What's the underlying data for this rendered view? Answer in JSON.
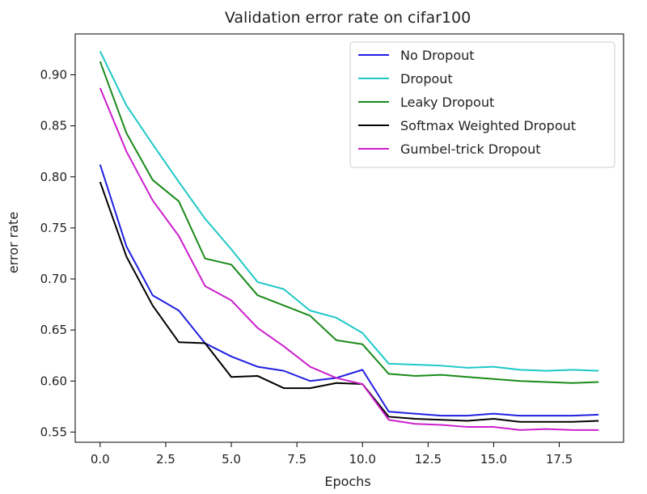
{
  "chart_data": {
    "type": "line",
    "title": "Validation error rate on cifar100",
    "xlabel": "Epochs",
    "ylabel": "error rate",
    "xlim": [
      -0.95,
      19.95
    ],
    "ylim": [
      0.54,
      0.94
    ],
    "xticks": [
      0.0,
      2.5,
      5.0,
      7.5,
      10.0,
      12.5,
      15.0,
      17.5
    ],
    "xtick_labels": [
      "0.0",
      "2.5",
      "5.0",
      "7.5",
      "10.0",
      "12.5",
      "15.0",
      "17.5"
    ],
    "yticks": [
      0.55,
      0.6,
      0.65,
      0.7,
      0.75,
      0.8,
      0.85,
      0.9
    ],
    "ytick_labels": [
      "0.55",
      "0.60",
      "0.65",
      "0.70",
      "0.75",
      "0.80",
      "0.85",
      "0.90"
    ],
    "grid": false,
    "legend_position": "top-right",
    "x": [
      0,
      1,
      2,
      3,
      4,
      5,
      6,
      7,
      8,
      9,
      10,
      11,
      12,
      13,
      14,
      15,
      16,
      17,
      18,
      19
    ],
    "series": [
      {
        "name": "No Dropout",
        "color": "#1f1fe0",
        "values": [
          0.812,
          0.732,
          0.684,
          0.669,
          0.637,
          0.624,
          0.614,
          0.61,
          0.6,
          0.603,
          0.611,
          0.57,
          0.568,
          0.566,
          0.566,
          0.568,
          0.566,
          0.566,
          0.566,
          0.567
        ]
      },
      {
        "name": "Dropout",
        "color": "#1fc8c8",
        "values": [
          0.923,
          0.87,
          0.832,
          0.795,
          0.759,
          0.729,
          0.697,
          0.69,
          0.669,
          0.662,
          0.647,
          0.617,
          0.616,
          0.615,
          0.613,
          0.614,
          0.611,
          0.61,
          0.611,
          0.61
        ]
      },
      {
        "name": "Leaky Dropout",
        "color": "#1a8a1a",
        "values": [
          0.913,
          0.843,
          0.797,
          0.776,
          0.72,
          0.714,
          0.684,
          0.674,
          0.664,
          0.64,
          0.636,
          0.607,
          0.605,
          0.606,
          0.604,
          0.602,
          0.6,
          0.599,
          0.598,
          0.599
        ]
      },
      {
        "name": "Softmax Weighted Dropout",
        "color": "#000000",
        "values": [
          0.795,
          0.722,
          0.674,
          0.638,
          0.637,
          0.604,
          0.605,
          0.593,
          0.593,
          0.598,
          0.597,
          0.565,
          0.563,
          0.562,
          0.561,
          0.563,
          0.56,
          0.56,
          0.56,
          0.561
        ]
      },
      {
        "name": "Gumbel-trick Dropout",
        "color": "#cc1fcc",
        "values": [
          0.887,
          0.825,
          0.777,
          0.742,
          0.693,
          0.679,
          0.652,
          0.634,
          0.614,
          0.603,
          0.597,
          0.562,
          0.558,
          0.557,
          0.555,
          0.555,
          0.552,
          0.553,
          0.552,
          0.552
        ]
      }
    ]
  }
}
